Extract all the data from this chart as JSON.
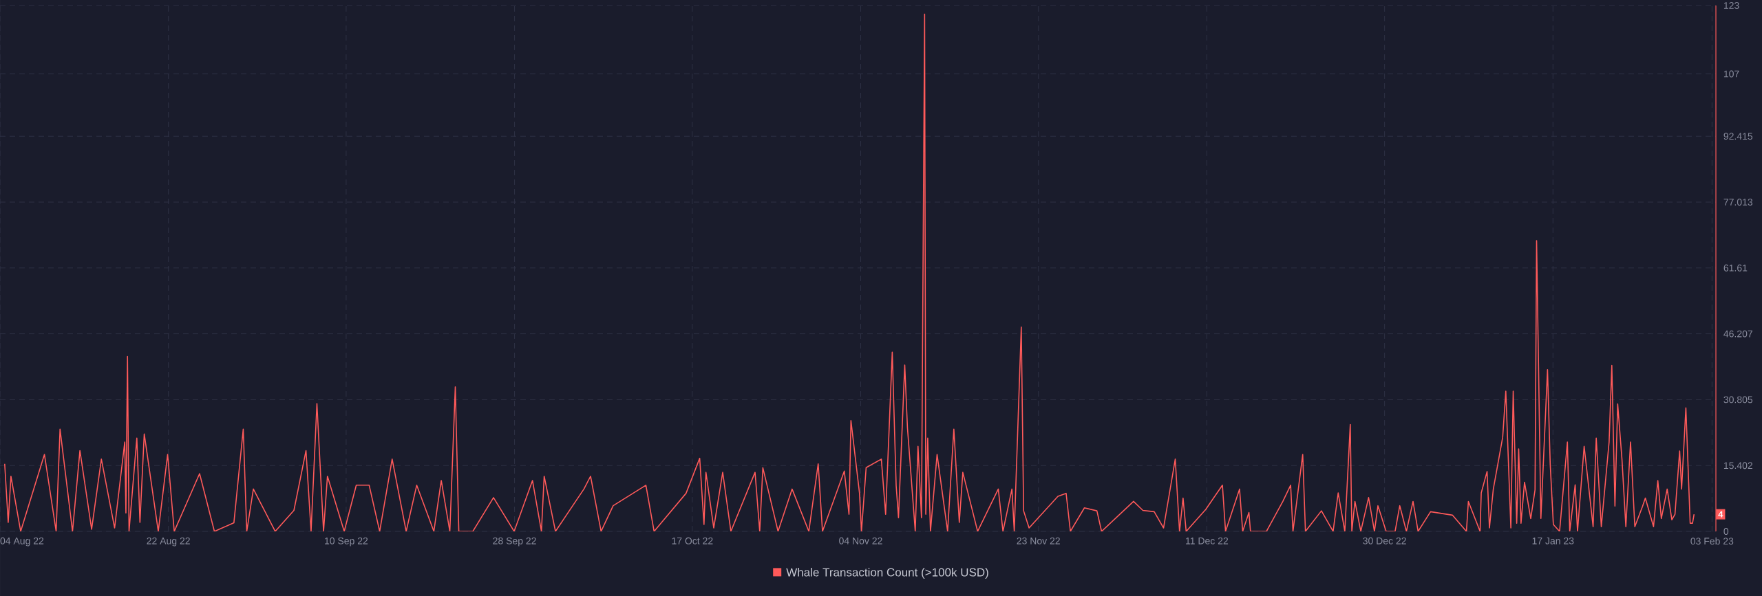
{
  "chart_data": {
    "type": "line",
    "x": [
      "2022-08-04T12:00",
      "2022-08-04T21:00",
      "2022-08-05T04:00",
      "2022-08-06T05:00",
      "2022-08-08T18:00",
      "2022-08-10T00:00",
      "2022-08-10T10:00",
      "2022-08-11T18:00",
      "2022-08-12T13:00",
      "2022-08-13T19:00",
      "2022-08-14T20:00",
      "2022-08-16T06:00",
      "2022-08-17T08:00",
      "2022-08-17T11:00",
      "2022-08-17T15:00",
      "2022-08-17T19:00",
      "2022-08-18T15:00",
      "2022-08-18T23:00",
      "2022-08-19T10:00",
      "2022-08-20T22:00",
      "2022-08-21T22:00",
      "2022-08-22T15:00",
      "2022-08-25T08:00",
      "2022-08-26T22:00",
      "2022-08-29T00:00",
      "2022-08-30T00:00",
      "2022-08-30T09:00",
      "2022-08-31T02:00",
      "2022-09-02T10:00",
      "2022-09-04T10:00",
      "2022-09-05T17:00",
      "2022-09-06T06:00",
      "2022-09-06T21:00",
      "2022-09-07T14:00",
      "2022-09-08T00:00",
      "2022-09-09T19:00",
      "2022-09-11T02:00",
      "2022-09-12T11:00",
      "2022-09-13T14:00",
      "2022-09-14T22:00",
      "2022-09-16T10:00",
      "2022-09-17T13:00",
      "2022-09-19T09:00",
      "2022-09-20T04:00",
      "2022-09-21T02:00",
      "2022-09-21T16:00",
      "2022-09-22T01:00",
      "2022-09-23T13:00",
      "2022-09-25T18:00",
      "2022-09-27T23:00",
      "2022-09-29T22:00",
      "2022-09-30T21:00",
      "2022-10-01T04:00",
      "2022-10-02T09:00",
      "2022-10-05T10:00",
      "2022-10-06T03:00",
      "2022-10-07T06:00",
      "2022-10-08T13:00",
      "2022-10-12T01:00",
      "2022-10-12T22:00",
      "2022-10-16T08:00",
      "2022-10-17T19:00",
      "2022-10-18T06:00",
      "2022-10-18T11:00",
      "2022-10-19T07:00",
      "2022-10-20T06:00",
      "2022-10-21T03:00",
      "2022-10-23T17:00",
      "2022-10-24T05:00",
      "2022-10-24T13:00",
      "2022-10-26T04:00",
      "2022-10-27T16:00",
      "2022-10-29T11:00",
      "2022-10-30T11:00",
      "2022-10-30T22:00",
      "2022-11-02T06:00",
      "2022-11-02T18:00",
      "2022-11-02T23:00",
      "2022-11-03T21:00",
      "2022-11-04T02:00",
      "2022-11-04T14:00",
      "2022-11-06T05:00",
      "2022-11-06T16:00",
      "2022-11-07T09:00",
      "2022-11-07T19:00",
      "2022-11-08T01:00",
      "2022-11-08T17:00",
      "2022-11-09T00:00",
      "2022-11-09T20:00",
      "2022-11-10T03:00",
      "2022-11-10T12:00",
      "2022-11-10T20:00",
      "2022-11-10T23:00",
      "2022-11-11T04:00",
      "2022-11-11T11:00",
      "2022-11-12T04:00",
      "2022-11-13T07:00",
      "2022-11-13T23:00",
      "2022-11-14T13:00",
      "2022-11-14T22:00",
      "2022-11-16T12:00",
      "2022-11-18T17:00",
      "2022-11-19T05:00",
      "2022-11-20T04:00",
      "2022-11-20T10:00",
      "2022-11-21T04:00",
      "2022-11-21T10:00",
      "2022-11-22T00:00",
      "2022-11-25T02:00",
      "2022-11-25T23:00",
      "2022-11-26T10:00",
      "2022-11-27T22:00",
      "2022-11-29T06:00",
      "2022-11-29T18:00",
      "2022-12-03T04:00",
      "2022-12-04T04:00",
      "2022-12-05T09:00",
      "2022-12-06T09:00",
      "2022-12-07T15:00",
      "2022-12-08T02:00",
      "2022-12-08T11:00",
      "2022-12-08T19:00",
      "2022-12-10T21:00",
      "2022-12-12T16:00",
      "2022-12-13T00:00",
      "2022-12-14T12:00",
      "2022-12-14T20:00",
      "2022-12-15T12:00",
      "2022-12-15T16:00",
      "2022-12-17T09:00",
      "2022-12-19T03:00",
      "2022-12-19T23:00",
      "2022-12-20T05:00",
      "2022-12-21T06:00",
      "2022-12-21T13:00",
      "2022-12-23T06:00",
      "2022-12-24T12:00",
      "2022-12-25T01:00",
      "2022-12-25T18:00",
      "2022-12-26T08:00",
      "2022-12-26T12:00",
      "2022-12-26T20:00",
      "2022-12-27T11:00",
      "2022-12-28T07:00",
      "2022-12-28T22:00",
      "2022-12-29T07:00",
      "2022-12-30T04:00",
      "2022-12-31T03:00",
      "2022-12-31T15:00",
      "2023-01-01T08:00",
      "2023-01-02T01:00",
      "2023-01-02T14:00",
      "2023-01-03T22:00",
      "2023-01-06T06:00",
      "2023-01-07T18:00",
      "2023-01-07T23:00",
      "2023-01-09T05:00",
      "2023-01-09T08:00",
      "2023-01-09T23:00",
      "2023-01-10T05:00",
      "2023-01-10T15:00",
      "2023-01-11T15:00",
      "2023-01-11T23:00",
      "2023-01-12T12:00",
      "2023-01-12T18:00",
      "2023-01-13T03:00",
      "2023-01-13T08:00",
      "2023-01-13T14:00",
      "2023-01-13T23:00",
      "2023-01-14T15:00",
      "2023-01-15T02:00",
      "2023-01-15T06:00",
      "2023-01-15T17:00",
      "2023-01-16T10:00",
      "2023-01-16T17:00",
      "2023-01-17T01:00",
      "2023-01-17T17:00",
      "2023-01-18T13:00",
      "2023-01-18T19:00",
      "2023-01-19T09:00",
      "2023-01-19T15:00",
      "2023-01-20T08:00",
      "2023-01-21T07:00",
      "2023-01-21T15:00",
      "2023-01-22T04:00",
      "2023-01-23T00:00",
      "2023-01-23T07:00",
      "2023-01-23T15:00",
      "2023-01-23T22:00",
      "2023-01-24T09:00",
      "2023-01-24T19:00",
      "2023-01-25T07:00",
      "2023-01-25T18:00",
      "2023-01-26T14:00",
      "2023-01-26T21:00",
      "2023-01-27T18:00",
      "2023-01-28T05:00",
      "2023-01-28T14:00",
      "2023-01-29T05:00",
      "2023-01-29T17:00",
      "2023-01-30T01:00",
      "2023-01-30T13:00",
      "2023-01-30T18:00",
      "2023-01-31T05:00",
      "2023-01-31T16:00",
      "2023-01-31T22:00",
      "2023-02-01T02:00"
    ],
    "series": [
      {
        "name": "Whale Transaction Count (>100k USD)",
        "color": "#ff5a5a",
        "values": [
          15.8,
          2.1,
          12.9,
          0,
          18.0,
          0,
          23.9,
          0,
          18.9,
          0.5,
          16.9,
          0.8,
          20.9,
          4.3,
          40.9,
          0,
          21.8,
          2.1,
          22.8,
          0,
          18.0,
          0,
          13.5,
          0,
          2,
          23.9,
          0,
          9.9,
          0,
          4.9,
          18.9,
          0,
          29.9,
          0,
          12.9,
          0,
          10.8,
          10.8,
          0,
          16.9,
          0,
          10.8,
          0,
          11.9,
          0,
          33.8,
          0,
          0,
          7.9,
          0,
          11.9,
          0,
          12.9,
          0,
          9.9,
          12.9,
          0,
          6,
          10.8,
          0,
          8.9,
          17.1,
          1.6,
          13.8,
          0.8,
          13.8,
          0,
          13.8,
          0,
          14.9,
          0,
          9.9,
          0,
          15.8,
          0,
          14.1,
          4,
          25.9,
          8.9,
          0,
          14.9,
          16.9,
          4,
          41.9,
          10.7,
          3.2,
          38.9,
          24.2,
          0,
          19.9,
          3.2,
          121,
          4,
          21.8,
          0,
          18,
          0,
          23.9,
          2.1,
          13.8,
          0,
          9.9,
          0,
          9.9,
          0,
          47.8,
          4.8,
          0.8,
          8.2,
          8.9,
          0,
          5.5,
          4.8,
          0,
          7,
          4.9,
          4.6,
          0.8,
          16.9,
          0,
          7.8,
          0,
          5.1,
          10.8,
          0,
          9.9,
          0,
          4.4,
          0,
          0,
          7,
          10.8,
          0,
          18,
          0,
          4.8,
          0,
          9,
          0,
          25,
          0,
          7,
          0,
          7.9,
          0,
          6,
          0,
          0,
          6,
          0,
          7,
          0,
          4.6,
          3.8,
          0,
          7,
          0,
          9,
          14,
          0.8,
          9.9,
          22,
          32.8,
          0.8,
          32.8,
          1.9,
          19.3,
          1.9,
          11.5,
          3,
          9.7,
          68,
          3,
          37.8,
          15.6,
          1.6,
          0,
          20.9,
          0,
          10.9,
          0,
          19.9,
          1.1,
          21.8,
          1.1,
          20.9,
          38.8,
          5.9,
          29.8,
          16.9,
          1.1,
          20.9,
          1.1,
          5.9,
          7.8,
          1.1,
          11.9,
          3,
          9.9,
          2.7,
          4,
          18.8,
          9.9,
          28.9,
          1.9,
          1.9,
          4
        ]
      }
    ],
    "xlim": [
      "2022-08-04T00:00",
      "2023-02-03T10:00"
    ],
    "xticks": [
      {
        "value": "2022-08-04",
        "label": "04 Aug 22"
      },
      {
        "value": "2022-08-22",
        "label": "22 Aug 22"
      },
      {
        "value": "2022-09-10",
        "label": "10 Sep 22"
      },
      {
        "value": "2022-09-28",
        "label": "28 Sep 22"
      },
      {
        "value": "2022-10-17",
        "label": "17 Oct 22"
      },
      {
        "value": "2022-11-04",
        "label": "04 Nov 22"
      },
      {
        "value": "2022-11-23",
        "label": "23 Nov 22"
      },
      {
        "value": "2022-12-11",
        "label": "11 Dec 22"
      },
      {
        "value": "2022-12-30",
        "label": "30 Dec 22"
      },
      {
        "value": "2023-01-17",
        "label": "17 Jan 23"
      },
      {
        "value": "2023-02-03",
        "label": "03 Feb 23"
      }
    ],
    "ylim": [
      0,
      123
    ],
    "yticks": [
      0,
      15.402,
      30.805,
      46.207,
      61.61,
      77.013,
      92.415,
      107,
      123
    ],
    "grid": true,
    "legend": "bottom",
    "annotations": [
      {
        "text": "4",
        "x": "2023-02-01T02:00",
        "y": 4
      }
    ]
  }
}
